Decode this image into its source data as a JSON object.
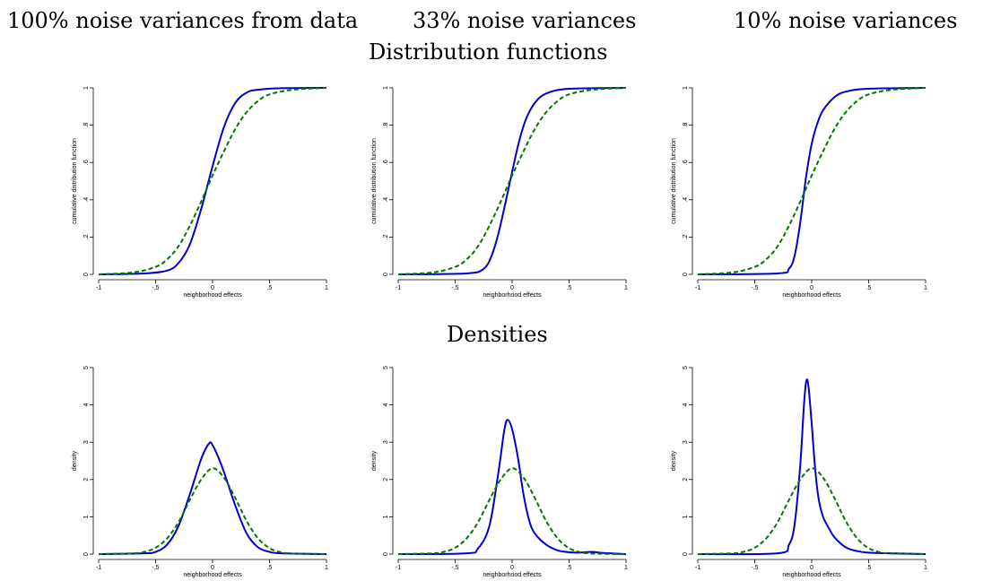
{
  "column_titles": [
    "100% noise variances from data",
    "33% noise variances",
    "10% noise variances"
  ],
  "row_titles": [
    "Distribution functions",
    "Densities"
  ],
  "colors": {
    "estimated": "#0000cc",
    "normal": "#007700"
  },
  "chart_data": [
    {
      "type": "line",
      "panel": "cdf-100",
      "xlabel": "neighborhood effects",
      "ylabel": "cumulative distribution function",
      "xlim": [
        -1,
        1
      ],
      "ylim": [
        0,
        1
      ],
      "x_ticks": [
        "-1",
        "-.5",
        "0",
        ".5",
        "1"
      ],
      "y_ticks": [
        "0",
        ".2",
        ".4",
        ".6",
        ".8",
        "1"
      ],
      "grid": false,
      "series": [
        {
          "style": "solid",
          "color": "#0000cc",
          "x": [
            -1,
            -0.6,
            -0.4,
            -0.3,
            -0.2,
            -0.1,
            0,
            0.1,
            0.2,
            0.3,
            0.4,
            0.6,
            1
          ],
          "y": [
            0.0,
            0.005,
            0.02,
            0.06,
            0.16,
            0.35,
            0.58,
            0.79,
            0.92,
            0.975,
            0.99,
            0.998,
            1.0
          ]
        },
        {
          "style": "dashed",
          "color": "#007700",
          "x": [
            -1,
            -0.7,
            -0.5,
            -0.4,
            -0.3,
            -0.2,
            -0.1,
            0,
            0.1,
            0.2,
            0.3,
            0.4,
            0.5,
            0.7,
            1
          ],
          "y": [
            0.0,
            0.01,
            0.04,
            0.08,
            0.15,
            0.26,
            0.39,
            0.53,
            0.66,
            0.78,
            0.87,
            0.93,
            0.965,
            0.99,
            1.0
          ]
        }
      ]
    },
    {
      "type": "line",
      "panel": "cdf-33",
      "xlabel": "neighborhood effects",
      "ylabel": "cumulative distribution function",
      "xlim": [
        -1,
        1
      ],
      "ylim": [
        0,
        1
      ],
      "x_ticks": [
        "-1",
        "-.5",
        "0",
        ".5",
        "1"
      ],
      "y_ticks": [
        "0",
        ".2",
        ".4",
        ".6",
        ".8",
        "1"
      ],
      "grid": false,
      "series": [
        {
          "style": "solid",
          "color": "#0000cc",
          "x": [
            -1,
            -0.4,
            -0.25,
            -0.18,
            -0.12,
            -0.06,
            0,
            0.06,
            0.12,
            0.2,
            0.3,
            0.5,
            1
          ],
          "y": [
            0.0,
            0.005,
            0.03,
            0.1,
            0.22,
            0.38,
            0.55,
            0.71,
            0.83,
            0.92,
            0.97,
            0.995,
            1.0
          ]
        },
        {
          "style": "dashed",
          "color": "#007700",
          "x": [
            -1,
            -0.7,
            -0.5,
            -0.4,
            -0.3,
            -0.2,
            -0.1,
            0,
            0.1,
            0.2,
            0.3,
            0.4,
            0.5,
            0.7,
            1
          ],
          "y": [
            0.0,
            0.01,
            0.04,
            0.08,
            0.15,
            0.26,
            0.39,
            0.53,
            0.66,
            0.78,
            0.87,
            0.93,
            0.965,
            0.99,
            1.0
          ]
        }
      ]
    },
    {
      "type": "line",
      "panel": "cdf-10",
      "xlabel": "neighborhood effects",
      "ylabel": "cumulative distribution function",
      "xlim": [
        -1,
        1
      ],
      "ylim": [
        0,
        1
      ],
      "x_ticks": [
        "-1",
        "-.5",
        "0",
        ".5",
        "1"
      ],
      "y_ticks": [
        "0",
        ".2",
        ".4",
        ".6",
        ".8",
        "1"
      ],
      "grid": false,
      "series": [
        {
          "style": "solid",
          "color": "#0000cc",
          "x": [
            -1,
            -0.3,
            -0.2,
            -0.15,
            -0.1,
            -0.05,
            0,
            0.05,
            0.1,
            0.2,
            0.3,
            0.5,
            1
          ],
          "y": [
            0.0,
            0.005,
            0.03,
            0.1,
            0.28,
            0.52,
            0.7,
            0.81,
            0.88,
            0.95,
            0.98,
            0.995,
            1.0
          ]
        },
        {
          "style": "dashed",
          "color": "#007700",
          "x": [
            -1,
            -0.7,
            -0.5,
            -0.4,
            -0.3,
            -0.2,
            -0.1,
            0,
            0.1,
            0.2,
            0.3,
            0.4,
            0.5,
            0.7,
            1
          ],
          "y": [
            0.0,
            0.01,
            0.04,
            0.08,
            0.15,
            0.26,
            0.39,
            0.53,
            0.66,
            0.78,
            0.87,
            0.93,
            0.965,
            0.99,
            1.0
          ]
        }
      ]
    },
    {
      "type": "line",
      "panel": "density-100",
      "xlabel": "neighborhood effects",
      "ylabel": "density",
      "xlim": [
        -1,
        1
      ],
      "ylim": [
        0,
        5
      ],
      "x_ticks": [
        "-1",
        "-.5",
        "0",
        ".5",
        "1"
      ],
      "y_ticks": [
        "0",
        "1",
        "2",
        "3",
        "4",
        "5"
      ],
      "grid": false,
      "series": [
        {
          "style": "solid",
          "color": "#0000cc",
          "x": [
            -1,
            -0.6,
            -0.5,
            -0.4,
            -0.3,
            -0.2,
            -0.1,
            -0.03,
            0,
            0.05,
            0.1,
            0.2,
            0.3,
            0.4,
            0.5,
            0.6,
            1
          ],
          "y": [
            0.0,
            0.02,
            0.06,
            0.25,
            0.75,
            1.6,
            2.55,
            2.97,
            2.92,
            2.6,
            2.2,
            1.3,
            0.55,
            0.18,
            0.06,
            0.02,
            0.0
          ]
        },
        {
          "style": "dashed",
          "color": "#007700",
          "x": [
            -1,
            -0.7,
            -0.6,
            -0.5,
            -0.4,
            -0.3,
            -0.2,
            -0.1,
            0,
            0.1,
            0.2,
            0.3,
            0.4,
            0.5,
            0.6,
            0.7,
            1
          ],
          "y": [
            0.0,
            0.02,
            0.06,
            0.17,
            0.42,
            0.85,
            1.45,
            2.0,
            2.3,
            2.05,
            1.5,
            0.88,
            0.42,
            0.16,
            0.05,
            0.015,
            0.0
          ]
        }
      ]
    },
    {
      "type": "line",
      "panel": "density-33",
      "xlabel": "neighborhood effects",
      "ylabel": "density",
      "xlim": [
        -1,
        1
      ],
      "ylim": [
        0,
        5
      ],
      "x_ticks": [
        "-1",
        "-.5",
        "0",
        ".5",
        "1"
      ],
      "y_ticks": [
        "0",
        "1",
        "2",
        "3",
        "4",
        "5"
      ],
      "grid": false,
      "series": [
        {
          "style": "solid",
          "color": "#0000cc",
          "x": [
            -1,
            -0.4,
            -0.3,
            -0.2,
            -0.12,
            -0.07,
            -0.04,
            0,
            0.05,
            0.1,
            0.15,
            0.2,
            0.3,
            0.4,
            0.5,
            0.6,
            0.7,
            0.8,
            1
          ],
          "y": [
            0.0,
            0.02,
            0.15,
            0.75,
            2.2,
            3.3,
            3.6,
            3.35,
            2.6,
            1.6,
            0.9,
            0.55,
            0.25,
            0.1,
            0.05,
            0.04,
            0.06,
            0.03,
            0.0
          ]
        },
        {
          "style": "dashed",
          "color": "#007700",
          "x": [
            -1,
            -0.7,
            -0.6,
            -0.5,
            -0.4,
            -0.3,
            -0.2,
            -0.1,
            0,
            0.1,
            0.2,
            0.3,
            0.4,
            0.5,
            0.6,
            0.7,
            1
          ],
          "y": [
            0.0,
            0.02,
            0.06,
            0.17,
            0.42,
            0.85,
            1.45,
            2.0,
            2.3,
            2.05,
            1.5,
            0.88,
            0.42,
            0.16,
            0.05,
            0.015,
            0.0
          ]
        }
      ]
    },
    {
      "type": "line",
      "panel": "density-10",
      "xlabel": "neighborhood effects",
      "ylabel": "density",
      "xlim": [
        -1,
        1
      ],
      "ylim": [
        0,
        5
      ],
      "x_ticks": [
        "-1",
        "-.5",
        "0",
        ".5",
        "1"
      ],
      "y_ticks": [
        "0",
        "1",
        "2",
        "3",
        "4",
        "5"
      ],
      "grid": false,
      "series": [
        {
          "style": "solid",
          "color": "#0000cc",
          "x": [
            -1,
            -0.3,
            -0.2,
            -0.15,
            -0.1,
            -0.07,
            -0.05,
            -0.03,
            0,
            0.03,
            0.06,
            0.1,
            0.15,
            0.2,
            0.3,
            0.4,
            0.5,
            0.7,
            1
          ],
          "y": [
            0.0,
            0.02,
            0.25,
            0.8,
            2.4,
            3.9,
            4.6,
            4.55,
            3.5,
            2.3,
            1.5,
            1.0,
            0.7,
            0.45,
            0.18,
            0.08,
            0.04,
            0.02,
            0.0
          ]
        },
        {
          "style": "dashed",
          "color": "#007700",
          "x": [
            -1,
            -0.7,
            -0.6,
            -0.5,
            -0.4,
            -0.3,
            -0.2,
            -0.1,
            0,
            0.1,
            0.2,
            0.3,
            0.4,
            0.5,
            0.6,
            0.7,
            1
          ],
          "y": [
            0.0,
            0.02,
            0.06,
            0.17,
            0.42,
            0.85,
            1.45,
            2.0,
            2.3,
            2.05,
            1.5,
            0.88,
            0.42,
            0.16,
            0.05,
            0.015,
            0.0
          ]
        }
      ]
    }
  ]
}
